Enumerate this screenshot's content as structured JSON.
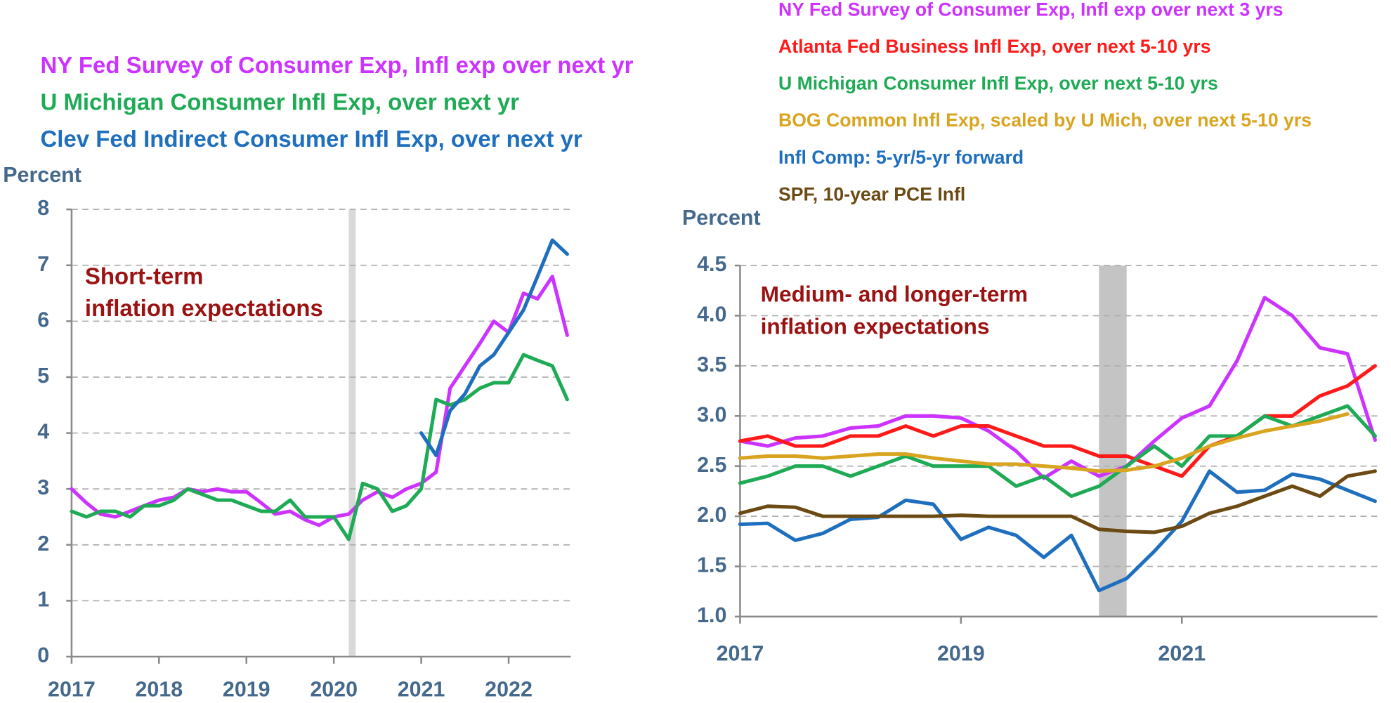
{
  "chart_data": [
    {
      "type": "line",
      "ylabel": "Percent",
      "annotation": [
        "Short-term",
        "inflation expectations"
      ],
      "x": [
        2017,
        2017.17,
        2017.33,
        2017.5,
        2017.67,
        2017.83,
        2018,
        2018.17,
        2018.33,
        2018.5,
        2018.67,
        2018.83,
        2019,
        2019.17,
        2019.33,
        2019.5,
        2019.67,
        2019.83,
        2020,
        2020.17,
        2020.33,
        2020.5,
        2020.67,
        2020.83,
        2021,
        2021.17,
        2021.33,
        2021.5,
        2021.67,
        2021.83,
        2022,
        2022.17,
        2022.33,
        2022.5,
        2022.67
      ],
      "series": [
        {
          "name": "NY Fed Survey of Consumer Exp, Infl exp over next yr",
          "color": "#cc33ff",
          "values": [
            3.0,
            2.75,
            2.55,
            2.5,
            2.6,
            2.7,
            2.8,
            2.85,
            3.0,
            2.95,
            3.0,
            2.95,
            2.95,
            2.75,
            2.55,
            2.6,
            2.45,
            2.35,
            2.5,
            2.55,
            2.8,
            2.95,
            2.85,
            3.0,
            3.1,
            3.3,
            4.8,
            5.2,
            5.6,
            6.0,
            5.8,
            6.5,
            6.4,
            6.8,
            5.75
          ]
        },
        {
          "name": "U Michigan Consumer Infl Exp, over next yr",
          "color": "#1faa55",
          "values": [
            2.6,
            2.5,
            2.6,
            2.6,
            2.5,
            2.7,
            2.7,
            2.8,
            3.0,
            2.9,
            2.8,
            2.8,
            2.7,
            2.6,
            2.6,
            2.8,
            2.5,
            2.5,
            2.5,
            2.1,
            3.1,
            3.0,
            2.6,
            2.7,
            3.0,
            4.6,
            4.5,
            4.6,
            4.8,
            4.9,
            4.9,
            5.4,
            5.3,
            5.2,
            4.6
          ]
        },
        {
          "name": "Clev Fed Indirect Consumer Infl Exp, over next yr",
          "color": "#1f6fbf",
          "values": [
            null,
            null,
            null,
            null,
            null,
            null,
            null,
            null,
            null,
            null,
            null,
            null,
            null,
            null,
            null,
            null,
            null,
            null,
            null,
            null,
            null,
            null,
            null,
            null,
            4.0,
            3.6,
            4.4,
            4.7,
            5.2,
            5.4,
            5.8,
            6.2,
            6.8,
            7.45,
            7.2
          ]
        }
      ],
      "shade": [
        2020.17,
        2020.25
      ],
      "xlim": [
        2017,
        2022.71
      ],
      "xticks": [
        2017,
        2018,
        2019,
        2020,
        2021,
        2022
      ],
      "ylim": [
        0,
        8
      ],
      "yticks": [
        0,
        1,
        2,
        3,
        4,
        5,
        6,
        7,
        8
      ],
      "grid": true
    },
    {
      "type": "line",
      "ylabel": "Percent",
      "annotation": [
        "Medium- and longer-term",
        "inflation expectations"
      ],
      "x": [
        2017,
        2017.25,
        2017.5,
        2017.75,
        2018,
        2018.25,
        2018.5,
        2018.75,
        2019,
        2019.25,
        2019.5,
        2019.75,
        2020,
        2020.25,
        2020.5,
        2020.75,
        2021,
        2021.25,
        2021.5,
        2021.75,
        2022,
        2022.25,
        2022.5,
        2022.75
      ],
      "series": [
        {
          "name": "NY Fed Survey of Consumer Exp, Infl exp over next 3 yrs",
          "color": "#cc33ff",
          "values": [
            2.75,
            2.7,
            2.78,
            2.8,
            2.88,
            2.9,
            3.0,
            3.0,
            2.98,
            2.85,
            2.65,
            2.38,
            2.55,
            2.4,
            2.5,
            2.75,
            2.98,
            3.1,
            3.55,
            4.18,
            4.0,
            3.68,
            3.62,
            2.76
          ]
        },
        {
          "name": "Atlanta Fed Business Infl Exp, over next 5-10 yrs",
          "color": "#ff1a1a",
          "values": [
            2.75,
            2.8,
            2.7,
            2.7,
            2.8,
            2.8,
            2.9,
            2.8,
            2.9,
            2.9,
            2.8,
            2.7,
            2.7,
            2.6,
            2.6,
            2.5,
            2.4,
            2.7,
            2.8,
            3.0,
            3.0,
            3.2,
            3.3,
            3.5
          ]
        },
        {
          "name": "U Michigan Consumer Infl Exp, over next 5-10 yrs",
          "color": "#1faa55",
          "values": [
            2.33,
            2.4,
            2.5,
            2.5,
            2.4,
            2.5,
            2.6,
            2.5,
            2.5,
            2.5,
            2.3,
            2.4,
            2.2,
            2.3,
            2.5,
            2.7,
            2.5,
            2.8,
            2.8,
            3.0,
            2.9,
            3.0,
            3.1,
            2.8
          ]
        },
        {
          "name": "BOG Common Infl Exp, scaled by U Mich, over next 5-10 yrs",
          "color": "#d9a520",
          "values": [
            2.58,
            2.6,
            2.6,
            2.58,
            2.6,
            2.62,
            2.62,
            2.58,
            2.55,
            2.52,
            2.52,
            2.5,
            2.48,
            2.45,
            2.46,
            2.5,
            2.58,
            2.7,
            2.78,
            2.85,
            2.9,
            2.95,
            3.02,
            null
          ]
        },
        {
          "name": "Infl Comp: 5-yr/5-yr forward",
          "color": "#1f6fbf",
          "values": [
            1.92,
            1.93,
            1.76,
            1.83,
            1.97,
            1.99,
            2.16,
            2.12,
            1.77,
            1.89,
            1.81,
            1.59,
            1.81,
            1.26,
            1.38,
            1.65,
            1.95,
            2.45,
            2.24,
            2.26,
            2.42,
            2.37,
            2.26,
            2.15
          ]
        },
        {
          "name": "SPF, 10-year PCE Infl",
          "color": "#6b4a14",
          "values": [
            2.03,
            2.1,
            2.09,
            2.0,
            2.0,
            2.0,
            2.0,
            2.0,
            2.01,
            2.0,
            2.0,
            2.0,
            2.0,
            1.87,
            1.85,
            1.84,
            1.9,
            2.03,
            2.1,
            2.2,
            2.3,
            2.2,
            2.4,
            2.45
          ]
        }
      ],
      "shade": [
        2020.25,
        2020.5
      ],
      "xlim": [
        2017,
        2022.77
      ],
      "xticks": [
        2017,
        2019,
        2021
      ],
      "ylim": [
        1.0,
        4.5
      ],
      "yticks": [
        {
          "value": 1.0,
          "label": "1.0"
        },
        1.5,
        {
          "value": 2.0,
          "label": "2.0"
        },
        2.5,
        {
          "value": 3.0,
          "label": "3.0"
        },
        3.5,
        {
          "value": 4.0,
          "label": "4.0"
        },
        4.5
      ],
      "grid": true
    }
  ]
}
